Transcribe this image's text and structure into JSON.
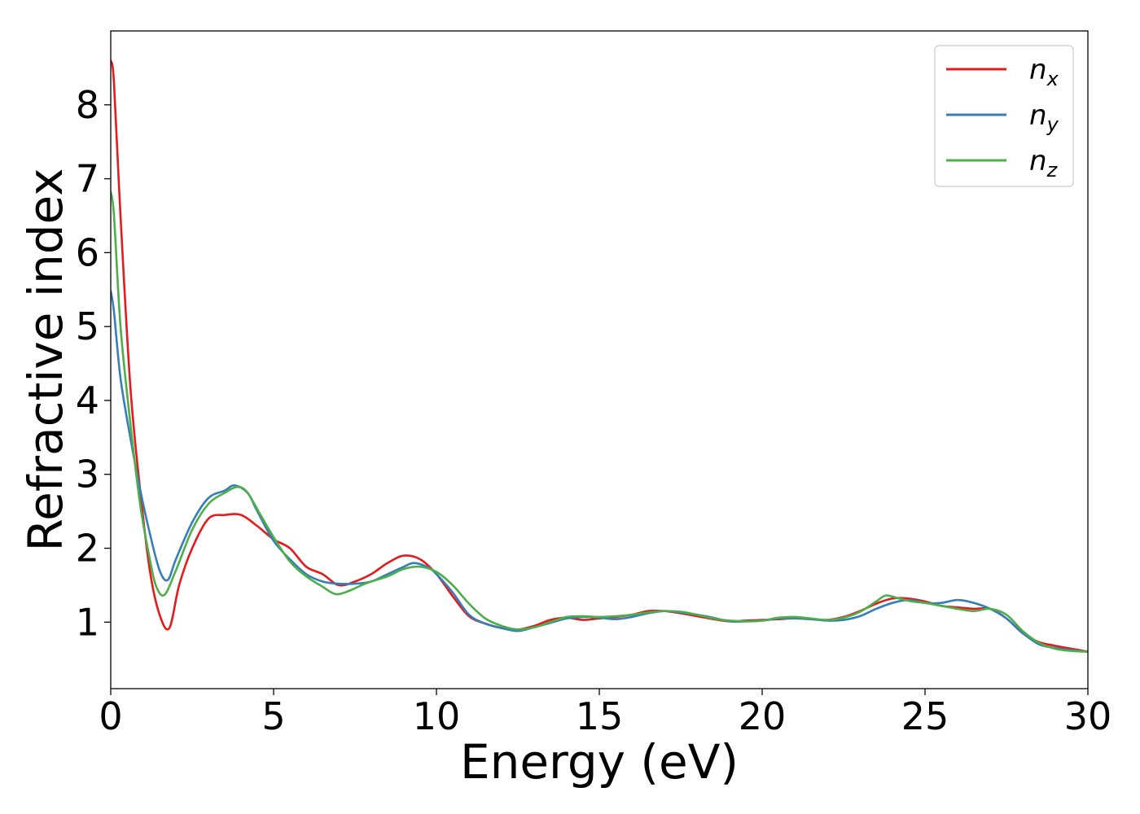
{
  "chart_data": {
    "type": "line",
    "title": "",
    "xlabel": "Energy (eV)",
    "ylabel": "Refractive index",
    "xlim": [
      0,
      30
    ],
    "ylim": [
      0.1,
      9.0
    ],
    "xticks": [
      0,
      5,
      10,
      15,
      20,
      25,
      30
    ],
    "yticks": [
      1,
      2,
      3,
      4,
      5,
      6,
      7,
      8
    ],
    "grid": false,
    "legend_position": "top-right",
    "series": [
      {
        "name": "n_x",
        "legend_base": "n",
        "legend_sub": "x",
        "color": "#e41a1c",
        "x": [
          0,
          0.1,
          0.3,
          0.6,
          0.9,
          1.2,
          1.5,
          1.8,
          2.1,
          2.5,
          3.0,
          3.5,
          4.0,
          4.5,
          5.0,
          5.5,
          6.0,
          6.5,
          7.0,
          7.5,
          8.0,
          8.5,
          9.0,
          9.5,
          10.0,
          10.5,
          11.0,
          11.5,
          12.0,
          12.5,
          13.0,
          13.5,
          14.0,
          14.5,
          15.0,
          15.5,
          16.0,
          16.5,
          17.0,
          17.5,
          18.0,
          18.5,
          19.0,
          19.5,
          20.0,
          20.5,
          21.0,
          21.5,
          22.0,
          22.5,
          23.0,
          23.5,
          24.0,
          24.5,
          25.0,
          25.5,
          26.0,
          26.5,
          27.0,
          27.5,
          28.0,
          28.5,
          29.0,
          29.5,
          30.0
        ],
        "values": [
          8.6,
          8.3,
          6.5,
          4.2,
          2.8,
          1.7,
          1.1,
          0.92,
          1.5,
          2.0,
          2.4,
          2.45,
          2.45,
          2.3,
          2.12,
          2.0,
          1.75,
          1.65,
          1.5,
          1.55,
          1.65,
          1.8,
          1.9,
          1.85,
          1.65,
          1.35,
          1.08,
          0.98,
          0.92,
          0.9,
          0.95,
          1.03,
          1.06,
          1.03,
          1.05,
          1.07,
          1.1,
          1.15,
          1.15,
          1.12,
          1.08,
          1.04,
          1.01,
          1.02,
          1.03,
          1.04,
          1.05,
          1.04,
          1.03,
          1.07,
          1.15,
          1.25,
          1.32,
          1.32,
          1.28,
          1.22,
          1.2,
          1.18,
          1.18,
          1.05,
          0.85,
          0.73,
          0.68,
          0.64,
          0.6
        ]
      },
      {
        "name": "n_y",
        "legend_base": "n",
        "legend_sub": "y",
        "color": "#377eb8",
        "x": [
          0,
          0.1,
          0.3,
          0.6,
          0.9,
          1.2,
          1.5,
          1.75,
          2.0,
          2.5,
          3.0,
          3.5,
          3.8,
          4.2,
          4.5,
          5.0,
          5.5,
          6.0,
          6.5,
          7.0,
          7.5,
          8.0,
          8.5,
          9.0,
          9.3,
          9.7,
          10.0,
          10.5,
          11.0,
          11.5,
          12.0,
          12.5,
          13.0,
          13.5,
          14.0,
          14.5,
          15.0,
          15.5,
          16.0,
          16.5,
          17.0,
          17.5,
          18.0,
          18.5,
          19.0,
          19.5,
          20.0,
          20.5,
          21.0,
          21.5,
          22.0,
          22.5,
          23.0,
          23.5,
          24.0,
          24.5,
          25.0,
          25.5,
          26.0,
          26.5,
          27.0,
          27.5,
          28.0,
          28.5,
          29.0,
          29.5,
          30.0
        ],
        "values": [
          5.48,
          5.2,
          4.3,
          3.5,
          2.8,
          2.2,
          1.7,
          1.57,
          1.85,
          2.35,
          2.68,
          2.78,
          2.85,
          2.75,
          2.5,
          2.1,
          1.85,
          1.65,
          1.55,
          1.52,
          1.52,
          1.55,
          1.65,
          1.75,
          1.8,
          1.75,
          1.65,
          1.4,
          1.1,
          0.98,
          0.92,
          0.88,
          0.93,
          0.99,
          1.05,
          1.07,
          1.06,
          1.04,
          1.07,
          1.12,
          1.15,
          1.13,
          1.1,
          1.06,
          1.01,
          1.01,
          1.02,
          1.05,
          1.05,
          1.04,
          1.02,
          1.03,
          1.08,
          1.18,
          1.26,
          1.3,
          1.26,
          1.26,
          1.3,
          1.26,
          1.18,
          1.05,
          0.85,
          0.7,
          0.65,
          0.62,
          0.6
        ]
      },
      {
        "name": "n_z",
        "legend_base": "n",
        "legend_sub": "z",
        "color": "#4daf4a",
        "x": [
          0,
          0.1,
          0.3,
          0.6,
          0.9,
          1.2,
          1.4,
          1.65,
          2.0,
          2.5,
          3.0,
          3.5,
          3.9,
          4.2,
          4.6,
          5.0,
          5.5,
          6.0,
          6.5,
          6.9,
          7.3,
          7.7,
          8.0,
          8.5,
          9.0,
          9.5,
          10.0,
          10.5,
          11.0,
          11.5,
          12.0,
          12.5,
          13.0,
          13.5,
          14.0,
          14.5,
          15.0,
          15.5,
          16.0,
          16.5,
          17.0,
          17.5,
          18.0,
          18.5,
          19.0,
          19.5,
          20.0,
          20.5,
          21.0,
          21.5,
          22.0,
          22.5,
          23.0,
          23.5,
          23.8,
          24.2,
          24.6,
          25.0,
          25.5,
          26.0,
          26.5,
          27.0,
          27.5,
          28.0,
          28.5,
          29.0,
          29.5,
          30.0
        ],
        "values": [
          6.82,
          6.5,
          5.0,
          3.7,
          2.6,
          1.85,
          1.48,
          1.37,
          1.7,
          2.25,
          2.6,
          2.75,
          2.83,
          2.75,
          2.45,
          2.15,
          1.82,
          1.62,
          1.48,
          1.38,
          1.42,
          1.5,
          1.55,
          1.62,
          1.72,
          1.75,
          1.68,
          1.5,
          1.25,
          1.05,
          0.95,
          0.9,
          0.93,
          1.0,
          1.07,
          1.08,
          1.07,
          1.08,
          1.1,
          1.13,
          1.15,
          1.14,
          1.1,
          1.05,
          1.02,
          1.01,
          1.02,
          1.06,
          1.07,
          1.05,
          1.03,
          1.06,
          1.14,
          1.28,
          1.36,
          1.32,
          1.28,
          1.26,
          1.22,
          1.18,
          1.15,
          1.18,
          1.1,
          0.88,
          0.72,
          0.64,
          0.61,
          0.6
        ]
      }
    ]
  }
}
